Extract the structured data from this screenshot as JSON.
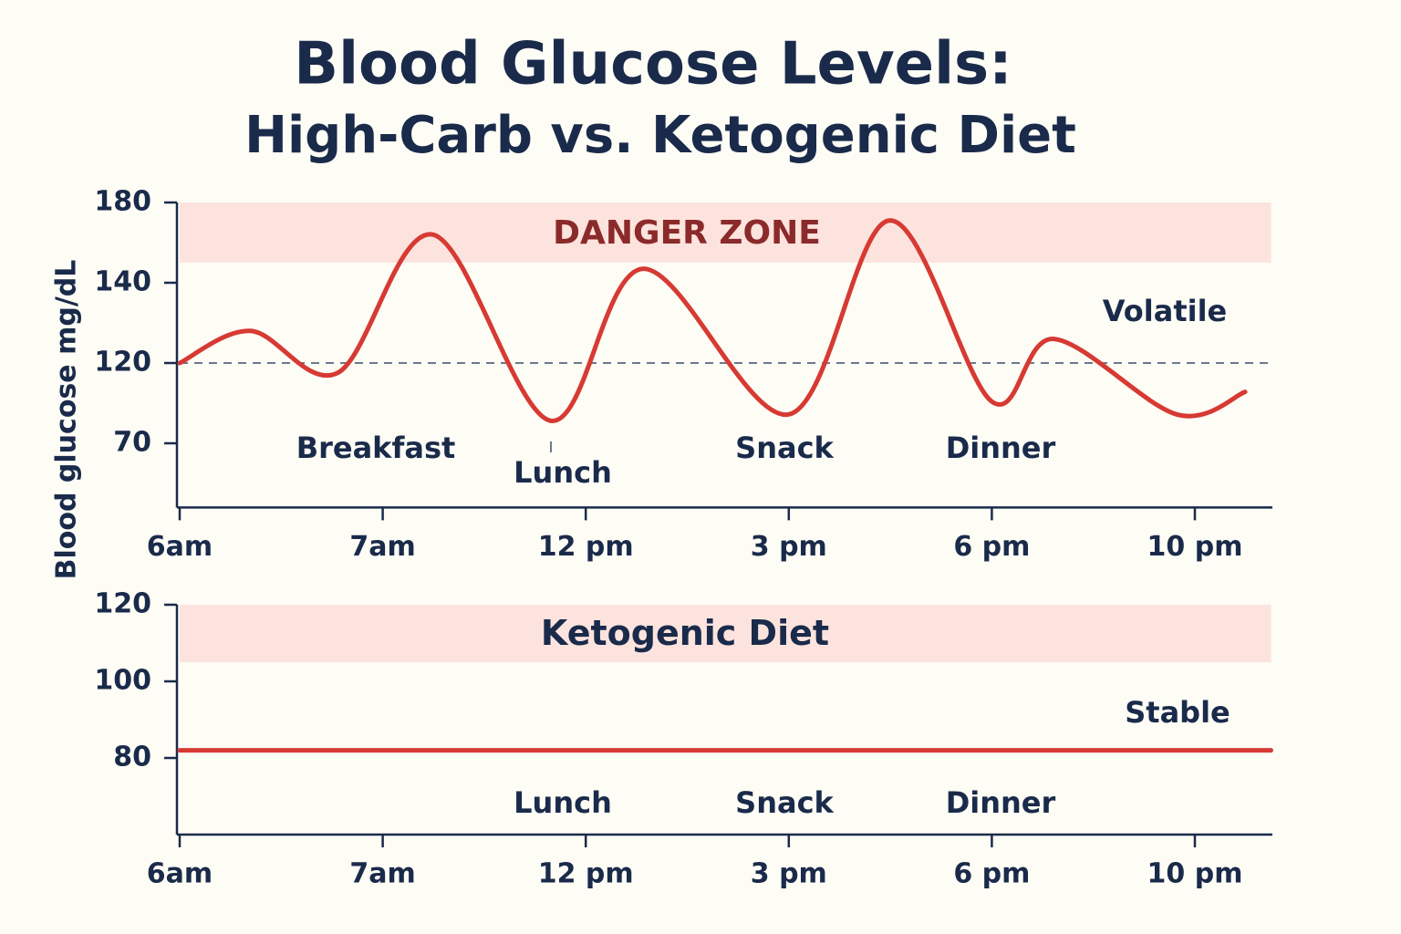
{
  "chart_data": [
    {
      "type": "line",
      "title": "Blood Glucose Levels:",
      "subtitle": "High-Carb vs. Ketogenic Diet",
      "ylabel": "Blood glucose mg/dL",
      "x": [
        6,
        6.35,
        6.78,
        8.24,
        11.14,
        12.85,
        15,
        16.49,
        18,
        19.22,
        21.64,
        22.99
      ],
      "series": [
        {
          "name": "High-Carb",
          "color": "#d63a33",
          "values": [
            120,
            128,
            114,
            164,
            84,
            147,
            88,
            171,
            96,
            126,
            88,
            102
          ]
        }
      ],
      "xlim": [
        6,
        23.5
      ],
      "xticks": [
        {
          "value": 6,
          "label": "6am"
        },
        {
          "value": 7,
          "label": "7am"
        },
        {
          "value": 12,
          "label": "12 pm"
        },
        {
          "value": 15,
          "label": "3 pm"
        },
        {
          "value": 18,
          "label": "6 pm"
        },
        {
          "value": 22,
          "label": "10 pm"
        }
      ],
      "ylim": [
        30,
        180
      ],
      "yticks": [
        180,
        140,
        120,
        70
      ],
      "band": [
        150,
        180
      ],
      "band_label": "DANGER ZONE",
      "reference_line": 120,
      "annotations": [
        "Breakfast",
        "Lunch",
        "Snack",
        "Dinner",
        "Volatile"
      ]
    },
    {
      "type": "line",
      "x": [
        6,
        23.5
      ],
      "series": [
        {
          "name": "Ketogenic",
          "color": "#d63a33",
          "values": [
            82,
            82
          ]
        }
      ],
      "xlim": [
        6,
        23.5
      ],
      "xticks": [
        {
          "value": 6,
          "label": "6am"
        },
        {
          "value": 7,
          "label": "7am"
        },
        {
          "value": 12,
          "label": "12 pm"
        },
        {
          "value": 15,
          "label": "3 pm"
        },
        {
          "value": 18,
          "label": "6 pm"
        },
        {
          "value": 22,
          "label": "10 pm"
        }
      ],
      "ylim": [
        60,
        120
      ],
      "yticks": [
        120,
        100,
        80
      ],
      "band": [
        105,
        120
      ],
      "band_label": "Ketogenic Diet",
      "annotations": [
        "Lunch",
        "Snack",
        "Dinner",
        "Stable"
      ]
    }
  ]
}
